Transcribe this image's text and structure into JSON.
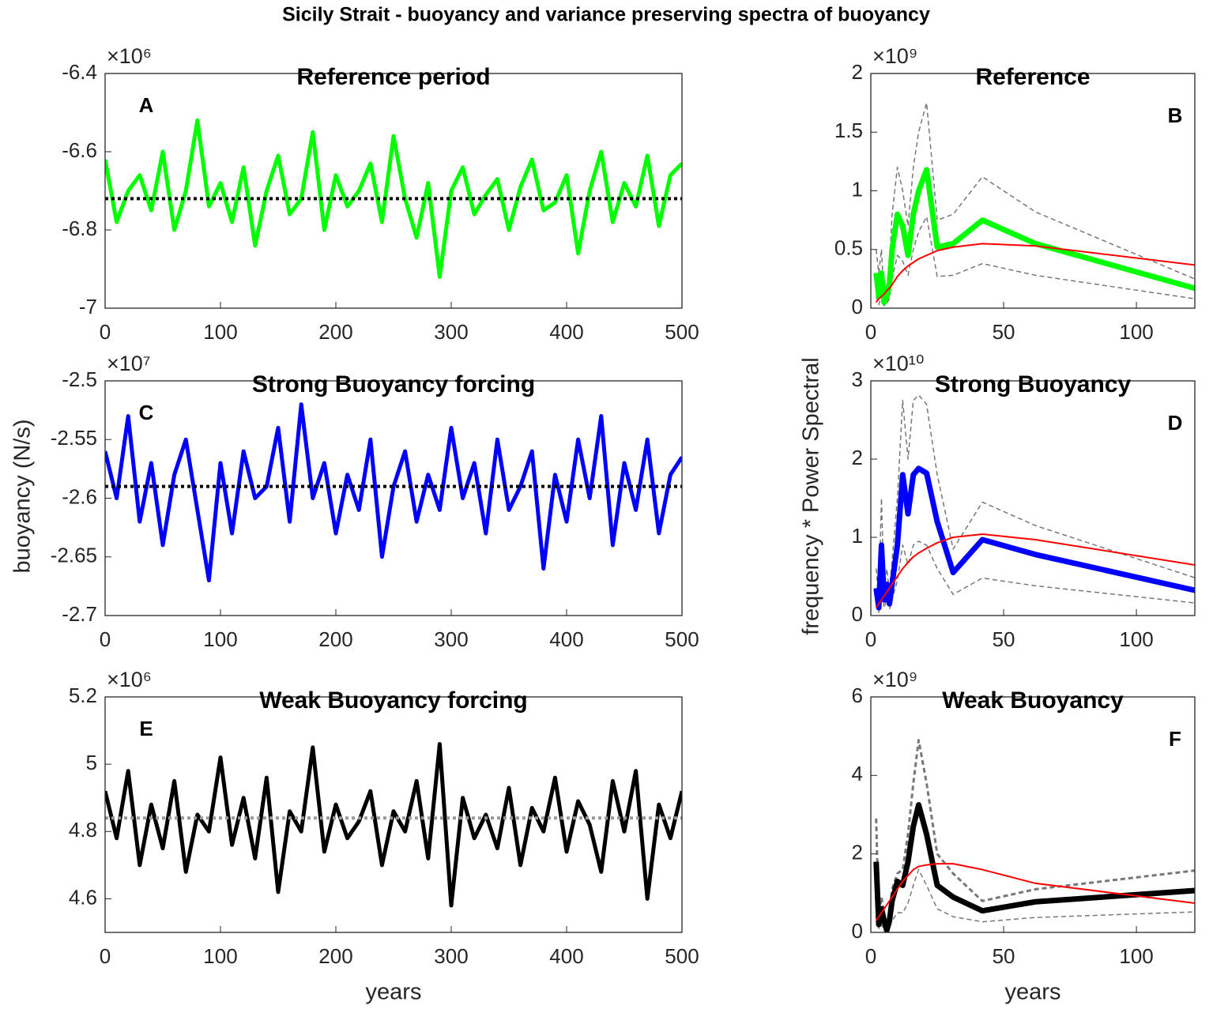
{
  "title": "Sicily Strait - buoyancy and variance preserving spectra of buoyancy",
  "chart_data": [
    {
      "type": "line",
      "title": "Reference period",
      "panel": "A",
      "exponent": "×10⁶",
      "xlim": [
        0,
        500
      ],
      "xticks": [
        0,
        100,
        200,
        300,
        400,
        500
      ],
      "ylim": [
        -7,
        -6.4
      ],
      "yticks": [
        -7,
        -6.8,
        -6.6,
        -6.4
      ],
      "x": [
        0,
        10,
        20,
        30,
        40,
        50,
        60,
        70,
        80,
        90,
        100,
        110,
        120,
        130,
        140,
        150,
        160,
        170,
        180,
        190,
        200,
        210,
        220,
        230,
        240,
        250,
        260,
        270,
        280,
        290,
        300,
        310,
        320,
        330,
        340,
        350,
        360,
        370,
        380,
        390,
        400,
        410,
        420,
        430,
        440,
        450,
        460,
        470,
        480,
        490,
        500
      ],
      "series": [
        {
          "color": "#00ff00",
          "width": 5,
          "dash": "solid",
          "values": [
            -6.62,
            -6.78,
            -6.7,
            -6.66,
            -6.75,
            -6.6,
            -6.8,
            -6.7,
            -6.52,
            -6.74,
            -6.68,
            -6.78,
            -6.64,
            -6.84,
            -6.7,
            -6.61,
            -6.76,
            -6.72,
            -6.55,
            -6.8,
            -6.66,
            -6.74,
            -6.7,
            -6.63,
            -6.78,
            -6.56,
            -6.72,
            -6.82,
            -6.68,
            -6.92,
            -6.7,
            -6.64,
            -6.76,
            -6.71,
            -6.67,
            -6.8,
            -6.69,
            -6.62,
            -6.75,
            -6.73,
            -6.66,
            -6.86,
            -6.7,
            -6.6,
            -6.78,
            -6.68,
            -6.74,
            -6.61,
            -6.79,
            -6.66,
            -6.63
          ]
        }
      ],
      "hline": {
        "value": -6.72,
        "color": "#000000"
      }
    },
    {
      "type": "line",
      "title": "Reference",
      "panel": "B",
      "exponent": "×10⁹",
      "xlim": [
        0,
        122
      ],
      "xticks": [
        0,
        50,
        100
      ],
      "ylim": [
        0,
        2
      ],
      "yticks": [
        0,
        0.5,
        1,
        1.5,
        2
      ],
      "x": [
        2,
        3,
        4,
        5,
        6,
        7,
        8,
        10,
        12,
        14,
        16,
        18,
        21,
        25,
        31,
        42,
        62,
        125
      ],
      "series": [
        {
          "color": "#777777",
          "width": 1.5,
          "dash": "dashed",
          "values": [
            0.5,
            0.3,
            0.5,
            0.1,
            0.2,
            0.35,
            0.8,
            1.2,
            1.0,
            0.7,
            1.2,
            1.5,
            1.75,
            0.75,
            0.8,
            1.12,
            0.82,
            0.22
          ]
        },
        {
          "color": "#777777",
          "width": 1.5,
          "dash": "dashed",
          "values": [
            0.1,
            0.03,
            0.1,
            0.02,
            0.04,
            0.08,
            0.25,
            0.45,
            0.4,
            0.28,
            0.5,
            0.65,
            0.78,
            0.27,
            0.28,
            0.38,
            0.28,
            0.07
          ]
        },
        {
          "color": "#00ff00",
          "width": 7,
          "dash": "solid",
          "values": [
            0.3,
            0.1,
            0.3,
            0.05,
            0.1,
            0.2,
            0.5,
            0.8,
            0.7,
            0.45,
            0.8,
            1.0,
            1.18,
            0.52,
            0.55,
            0.75,
            0.55,
            0.15
          ]
        },
        {
          "color": "#ff0000",
          "width": 2,
          "dash": "solid",
          "values": [
            0.05,
            0.08,
            0.1,
            0.12,
            0.15,
            0.17,
            0.2,
            0.27,
            0.32,
            0.36,
            0.39,
            0.42,
            0.45,
            0.49,
            0.52,
            0.55,
            0.53,
            0.36
          ]
        }
      ]
    },
    {
      "type": "line",
      "title": "Strong Buoyancy forcing",
      "panel": "C",
      "exponent": "×10⁷",
      "ylabel": "buoyancy (N/s)",
      "xlim": [
        0,
        500
      ],
      "xticks": [
        0,
        100,
        200,
        300,
        400,
        500
      ],
      "ylim": [
        -2.7,
        -2.5
      ],
      "yticks": [
        -2.7,
        -2.65,
        -2.6,
        -2.55,
        -2.5
      ],
      "x": [
        0,
        10,
        20,
        30,
        40,
        50,
        60,
        70,
        80,
        90,
        100,
        110,
        120,
        130,
        140,
        150,
        160,
        170,
        180,
        190,
        200,
        210,
        220,
        230,
        240,
        250,
        260,
        270,
        280,
        290,
        300,
        310,
        320,
        330,
        340,
        350,
        360,
        370,
        380,
        390,
        400,
        410,
        420,
        430,
        440,
        450,
        460,
        470,
        480,
        490,
        500
      ],
      "series": [
        {
          "color": "#0000ff",
          "width": 5,
          "dash": "solid",
          "values": [
            -2.56,
            -2.6,
            -2.53,
            -2.62,
            -2.57,
            -2.64,
            -2.58,
            -2.55,
            -2.61,
            -2.67,
            -2.57,
            -2.63,
            -2.56,
            -2.6,
            -2.59,
            -2.54,
            -2.62,
            -2.52,
            -2.6,
            -2.57,
            -2.63,
            -2.58,
            -2.61,
            -2.55,
            -2.65,
            -2.59,
            -2.56,
            -2.62,
            -2.58,
            -2.61,
            -2.54,
            -2.6,
            -2.57,
            -2.63,
            -2.55,
            -2.61,
            -2.59,
            -2.56,
            -2.66,
            -2.58,
            -2.62,
            -2.55,
            -2.6,
            -2.53,
            -2.64,
            -2.57,
            -2.61,
            -2.55,
            -2.63,
            -2.58,
            -2.565
          ]
        }
      ],
      "hline": {
        "value": -2.59,
        "color": "#000000"
      }
    },
    {
      "type": "line",
      "title": "Strong Buoyancy",
      "panel": "D",
      "exponent": "×10¹⁰",
      "ylabel": "frequency * Power Spectral",
      "xlim": [
        0,
        122
      ],
      "xticks": [
        0,
        50,
        100
      ],
      "ylim": [
        0,
        3
      ],
      "yticks": [
        0,
        1,
        2,
        3
      ],
      "x": [
        2,
        3,
        4,
        5,
        6,
        7,
        8,
        10,
        12,
        14,
        16,
        18,
        21,
        25,
        31,
        42,
        62,
        125
      ],
      "series": [
        {
          "color": "#777777",
          "width": 1.5,
          "dash": "dashed",
          "values": [
            0.6,
            0.2,
            1.5,
            0.3,
            0.6,
            0.3,
            0.7,
            1.5,
            2.75,
            2.0,
            2.75,
            2.82,
            2.7,
            1.8,
            0.85,
            1.45,
            1.15,
            0.45
          ]
        },
        {
          "color": "#777777",
          "width": 1.5,
          "dash": "dashed",
          "values": [
            0.15,
            0.04,
            0.45,
            0.1,
            0.2,
            0.08,
            0.2,
            0.45,
            0.9,
            0.65,
            0.9,
            0.95,
            0.9,
            0.6,
            0.27,
            0.48,
            0.38,
            0.15
          ]
        },
        {
          "color": "#0000ff",
          "width": 7,
          "dash": "solid",
          "values": [
            0.35,
            0.1,
            0.9,
            0.2,
            0.4,
            0.15,
            0.4,
            0.9,
            1.8,
            1.3,
            1.8,
            1.88,
            1.82,
            1.2,
            0.55,
            0.97,
            0.78,
            0.3
          ]
        },
        {
          "color": "#ff0000",
          "width": 2,
          "dash": "solid",
          "values": [
            0.1,
            0.15,
            0.2,
            0.25,
            0.3,
            0.35,
            0.4,
            0.5,
            0.6,
            0.68,
            0.75,
            0.8,
            0.86,
            0.93,
            1.0,
            1.04,
            0.97,
            0.63
          ]
        }
      ]
    },
    {
      "type": "line",
      "title": "Weak Buoyancy forcing",
      "panel": "E",
      "exponent": "×10⁶",
      "xlabel": "years",
      "xlim": [
        0,
        500
      ],
      "xticks": [
        0,
        100,
        200,
        300,
        400,
        500
      ],
      "ylim": [
        4.5,
        5.2
      ],
      "yticks": [
        4.6,
        4.8,
        5,
        5.2
      ],
      "x": [
        0,
        10,
        20,
        30,
        40,
        50,
        60,
        70,
        80,
        90,
        100,
        110,
        120,
        130,
        140,
        150,
        160,
        170,
        180,
        190,
        200,
        210,
        220,
        230,
        240,
        250,
        260,
        270,
        280,
        290,
        300,
        310,
        320,
        330,
        340,
        350,
        360,
        370,
        380,
        390,
        400,
        410,
        420,
        430,
        440,
        450,
        460,
        470,
        480,
        490,
        500
      ],
      "series": [
        {
          "color": "#000000",
          "width": 5,
          "dash": "solid",
          "values": [
            4.92,
            4.78,
            4.98,
            4.7,
            4.88,
            4.75,
            4.95,
            4.68,
            4.85,
            4.8,
            5.02,
            4.76,
            4.9,
            4.72,
            4.96,
            4.62,
            4.86,
            4.8,
            5.05,
            4.74,
            4.88,
            4.78,
            4.83,
            4.92,
            4.7,
            4.86,
            4.8,
            4.95,
            4.72,
            5.06,
            4.58,
            4.9,
            4.78,
            4.85,
            4.75,
            4.93,
            4.7,
            4.87,
            4.8,
            4.96,
            4.74,
            4.89,
            4.82,
            4.68,
            4.95,
            4.8,
            4.98,
            4.6,
            4.88,
            4.78,
            4.92
          ]
        }
      ],
      "hline": {
        "value": 4.84,
        "color": "#999999"
      }
    },
    {
      "type": "line",
      "title": "Weak Buoyancy",
      "panel": "F",
      "exponent": "×10⁹",
      "xlabel": "years",
      "xlim": [
        0,
        122
      ],
      "xticks": [
        0,
        50,
        100
      ],
      "ylim": [
        0,
        6
      ],
      "yticks": [
        0,
        2,
        4,
        6
      ],
      "x": [
        2,
        3,
        4,
        5,
        6,
        7,
        8,
        10,
        12,
        14,
        16,
        18,
        21,
        25,
        31,
        42,
        62,
        125
      ],
      "series": [
        {
          "color": "#777777",
          "width": 3,
          "dash": "dashed",
          "values": [
            2.9,
            0.4,
            0.9,
            0.5,
            0.1,
            0.5,
            1.1,
            1.5,
            1.6,
            2.5,
            3.8,
            4.9,
            3.8,
            2.0,
            1.5,
            0.8,
            1.1,
            1.6
          ]
        },
        {
          "color": "#777777",
          "width": 1.5,
          "dash": "dashed",
          "values": [
            0.6,
            0.1,
            0.2,
            0.1,
            0.02,
            0.1,
            0.3,
            0.5,
            0.5,
            0.75,
            1.2,
            1.6,
            1.2,
            0.6,
            0.4,
            0.27,
            0.38,
            0.53
          ]
        },
        {
          "color": "#000000",
          "width": 7,
          "dash": "solid",
          "values": [
            1.8,
            0.2,
            0.6,
            0.3,
            0.05,
            0.3,
            0.8,
            1.3,
            1.2,
            1.8,
            2.7,
            3.25,
            2.5,
            1.2,
            0.9,
            0.55,
            0.78,
            1.08
          ]
        },
        {
          "color": "#ff0000",
          "width": 2,
          "dash": "solid",
          "values": [
            0.3,
            0.4,
            0.5,
            0.6,
            0.7,
            0.8,
            0.9,
            1.1,
            1.3,
            1.45,
            1.6,
            1.68,
            1.72,
            1.75,
            1.75,
            1.6,
            1.25,
            0.72
          ]
        }
      ]
    }
  ]
}
